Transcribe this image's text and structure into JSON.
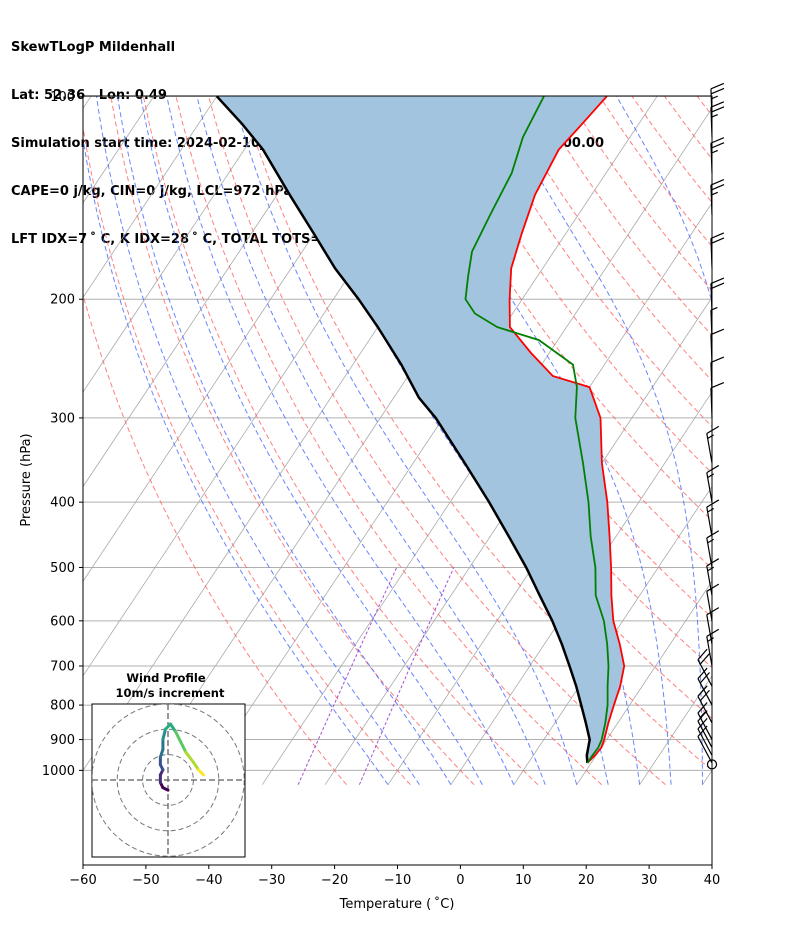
{
  "header": {
    "line1": "SkewTLogP Mildenhall",
    "line2": "Lat: 52.36   Lon: 0.49",
    "line3": "Simulation start time: 2024-02-10_00:00:00, Valid time: 2024-02-10T22:00:00.00",
    "line4": "CAPE=0 j/kg, CIN=0 j/kg, LCL=972 hPa, LFC=nan hPa, EQ=nan hPa",
    "line5": "LFT IDX=7 ˚ C, K IDX=28 ˚ C, TOTAL TOTS=50 ˚ C, SHWTR_IDX=3 ˚ C"
  },
  "colors": {
    "temperature": "#ff0000",
    "dewpoint": "#008000",
    "parcel": "#000000",
    "shade": "#a3c4de",
    "dry_adiabat": "#ff5555",
    "moist_adiabat": "#4466ff",
    "mixing_ratio": "#9933cc",
    "isotherm": "#aaaaaa"
  },
  "chart_data": [
    {
      "type": "line",
      "subtype": "skew-t log-p",
      "xlabel": "Temperature ( ˚C)",
      "ylabel": "Pressure (hPa)",
      "xlim": [
        -60,
        40
      ],
      "ylim": [
        1050,
        100
      ],
      "y_scale": "log",
      "grid": true,
      "x_ticks": [
        "−60",
        "−50",
        "−40",
        "−30",
        "−20",
        "−10",
        "0",
        "10",
        "20",
        "30",
        "40"
      ],
      "y_ticks": [
        "100",
        "200",
        "300",
        "400",
        "500",
        "600",
        "700",
        "800",
        "900",
        "1000"
      ],
      "series": [
        {
          "name": "temperature",
          "points": [
            [
              9.4,
              975
            ],
            [
              9.8,
              950
            ],
            [
              10.0,
              925
            ],
            [
              9.6,
              900
            ],
            [
              8.5,
              850
            ],
            [
              7.5,
              800
            ],
            [
              6.5,
              750
            ],
            [
              5,
              700
            ],
            [
              2,
              650
            ],
            [
              -1.5,
              600
            ],
            [
              -4.5,
              550
            ],
            [
              -7.5,
              500
            ],
            [
              -11,
              450
            ],
            [
              -15,
              400
            ],
            [
              -20,
              350
            ],
            [
              -25,
              300
            ],
            [
              -30,
              270
            ],
            [
              -37,
              260
            ],
            [
              -43,
              240
            ],
            [
              -49,
              220
            ],
            [
              -52,
              200
            ],
            [
              -55,
              180
            ],
            [
              -57,
              160
            ],
            [
              -59,
              140
            ],
            [
              -60,
              120
            ],
            [
              -59,
              110
            ],
            [
              -58,
              100
            ]
          ]
        },
        {
          "name": "dewpoint",
          "points": [
            [
              9.4,
              975
            ],
            [
              9.4,
              950
            ],
            [
              9.5,
              925
            ],
            [
              9.2,
              900
            ],
            [
              8.0,
              850
            ],
            [
              6.5,
              800
            ],
            [
              4.5,
              750
            ],
            [
              2.5,
              700
            ],
            [
              0,
              650
            ],
            [
              -3,
              600
            ],
            [
              -7,
              550
            ],
            [
              -10,
              500
            ],
            [
              -14,
              450
            ],
            [
              -18,
              400
            ],
            [
              -23,
              350
            ],
            [
              -29,
              300
            ],
            [
              -32,
              270
            ],
            [
              -35,
              250
            ],
            [
              -43,
              230
            ],
            [
              -51,
              220
            ],
            [
              -56,
              210
            ],
            [
              -59,
              200
            ],
            [
              -61,
              185
            ],
            [
              -63,
              170
            ],
            [
              -64,
              150
            ],
            [
              -65,
              130
            ],
            [
              -67,
              115
            ],
            [
              -68,
              100
            ]
          ]
        },
        {
          "name": "parcel",
          "points": [
            [
              9.4,
              975
            ],
            [
              8.5,
              950
            ],
            [
              7.3,
              900
            ],
            [
              4.9,
              850
            ],
            [
              2.3,
              800
            ],
            [
              -0.5,
              750
            ],
            [
              -3.7,
              700
            ],
            [
              -7.2,
              650
            ],
            [
              -11.2,
              600
            ],
            [
              -15.9,
              550
            ],
            [
              -21,
              500
            ],
            [
              -27,
              450
            ],
            [
              -33.8,
              400
            ],
            [
              -41.8,
              350
            ],
            [
              -51.2,
              300
            ],
            [
              -56,
              280
            ],
            [
              -62.3,
              250
            ],
            [
              -70,
              220
            ],
            [
              -76,
              200
            ],
            [
              -83,
              180
            ],
            [
              -90,
              160
            ],
            [
              -98,
              140
            ],
            [
              -107,
              120
            ],
            [
              -113,
              110
            ],
            [
              -120,
              100
            ]
          ]
        }
      ],
      "isotherm_labels": false
    },
    {
      "type": "line",
      "subtype": "hodograph",
      "title": "Wind Profile",
      "subtitle": "10m/s increment",
      "rings": [
        10,
        20,
        30
      ],
      "points": [
        [
          0,
          -4
        ],
        [
          -2,
          -3
        ],
        [
          -3,
          -1
        ],
        [
          -3,
          2
        ],
        [
          -2,
          4
        ],
        [
          -3,
          6
        ],
        [
          -3,
          9
        ],
        [
          -2,
          12
        ],
        [
          -2,
          16
        ],
        [
          -1,
          20
        ],
        [
          1,
          22
        ],
        [
          3,
          19
        ],
        [
          5,
          15
        ],
        [
          7,
          11
        ],
        [
          10,
          7
        ],
        [
          12,
          4
        ],
        [
          14,
          2
        ]
      ]
    }
  ],
  "wind_barbs": [
    {
      "p": 1000,
      "dir": "calm"
    },
    {
      "p": 975,
      "spd": 10
    },
    {
      "p": 950,
      "spd": 12
    },
    {
      "p": 925,
      "spd": 14
    },
    {
      "p": 900,
      "spd": 16
    },
    {
      "p": 850,
      "spd": 22
    },
    {
      "p": 800,
      "spd": 22
    },
    {
      "p": 750,
      "spd": 20
    },
    {
      "p": 700,
      "spd": 15
    },
    {
      "p": 650,
      "spd": 12
    },
    {
      "p": 600,
      "spd": 14
    },
    {
      "p": 550,
      "spd": 15
    },
    {
      "p": 500,
      "spd": 15
    },
    {
      "p": 450,
      "spd": 15
    },
    {
      "p": 400,
      "spd": 15
    },
    {
      "p": 350,
      "spd": 15
    },
    {
      "p": 300,
      "spd": 10
    },
    {
      "p": 275,
      "spd": 10
    },
    {
      "p": 250,
      "spd": 10
    },
    {
      "p": 230,
      "spd": 8
    },
    {
      "p": 210,
      "spd": 20
    },
    {
      "p": 180,
      "spd": 20
    },
    {
      "p": 150,
      "spd": 25
    },
    {
      "p": 130,
      "spd": 25
    },
    {
      "p": 115,
      "spd": 25
    },
    {
      "p": 108,
      "spd": 25
    }
  ]
}
